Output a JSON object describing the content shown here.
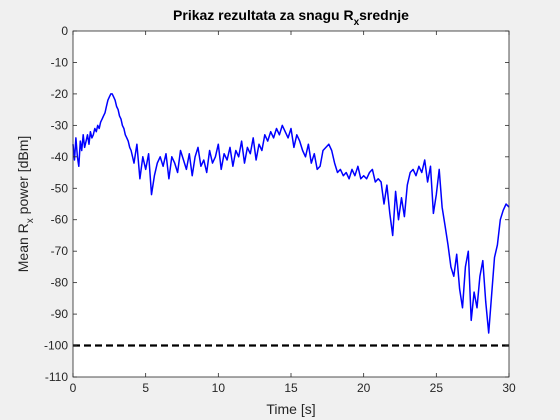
{
  "chart_data": {
    "type": "line",
    "title": {
      "main": "Prikaz rezultata za snagu R",
      "sub": "x",
      "rest": "srednje"
    },
    "xlabel": "Time [s]",
    "ylabel": {
      "main": "Mean R",
      "sub": "x",
      "rest": " power [dBm]"
    },
    "xlim": [
      0,
      30
    ],
    "ylim": [
      -110,
      0
    ],
    "x_ticks": [
      0,
      5,
      10,
      15,
      20,
      25,
      30
    ],
    "y_ticks": [
      0,
      -10,
      -20,
      -30,
      -40,
      -50,
      -60,
      -70,
      -80,
      -90,
      -100,
      -110
    ],
    "grid": false,
    "series": [
      {
        "color": "#0000ff",
        "style": "solid",
        "x": [
          0,
          0.1,
          0.2,
          0.3,
          0.4,
          0.5,
          0.6,
          0.7,
          0.8,
          0.9,
          1.0,
          1.1,
          1.2,
          1.3,
          1.4,
          1.5,
          1.6,
          1.7,
          1.8,
          1.9,
          2.0,
          2.1,
          2.2,
          2.3,
          2.4,
          2.5,
          2.6,
          2.7,
          2.8,
          2.9,
          3.0,
          3.1,
          3.2,
          3.3,
          3.4,
          3.5,
          3.6,
          3.7,
          3.8,
          3.9,
          4.0,
          4.2,
          4.4,
          4.6,
          4.8,
          5.0,
          5.2,
          5.4,
          5.6,
          5.8,
          6.0,
          6.2,
          6.4,
          6.6,
          6.8,
          7.0,
          7.2,
          7.4,
          7.6,
          7.8,
          8.0,
          8.2,
          8.4,
          8.6,
          8.8,
          9.0,
          9.2,
          9.4,
          9.6,
          9.8,
          10.0,
          10.2,
          10.4,
          10.6,
          10.8,
          11.0,
          11.2,
          11.4,
          11.6,
          11.8,
          12.0,
          12.2,
          12.4,
          12.6,
          12.8,
          13.0,
          13.2,
          13.4,
          13.6,
          13.8,
          14.0,
          14.2,
          14.4,
          14.6,
          14.8,
          15.0,
          15.2,
          15.4,
          15.6,
          15.8,
          16.0,
          16.2,
          16.4,
          16.6,
          16.8,
          17.0,
          17.2,
          17.4,
          17.6,
          17.8,
          18.0,
          18.2,
          18.4,
          18.6,
          18.8,
          19.0,
          19.2,
          19.4,
          19.6,
          19.8,
          20.0,
          20.2,
          20.4,
          20.6,
          20.8,
          21.0,
          21.2,
          21.4,
          21.6,
          21.8,
          22.0,
          22.2,
          22.4,
          22.6,
          22.8,
          23.0,
          23.2,
          23.4,
          23.6,
          23.8,
          24.0,
          24.2,
          24.4,
          24.6,
          24.8,
          25.0,
          25.2,
          25.4,
          25.6,
          25.8,
          26.0,
          26.2,
          26.4,
          26.6,
          26.8,
          27.0,
          27.2,
          27.4,
          27.6,
          27.8,
          28.0,
          28.2,
          28.4,
          28.6,
          28.8,
          29.0,
          29.2,
          29.4,
          29.6,
          29.8,
          30.0
        ],
        "y": [
          -36,
          -41,
          -34,
          -40,
          -43,
          -35,
          -38,
          -33,
          -37,
          -35,
          -33,
          -36,
          -32,
          -34,
          -33,
          -31,
          -32,
          -30,
          -31,
          -29,
          -28,
          -27,
          -26,
          -24,
          -22,
          -21,
          -20,
          -20,
          -21,
          -22,
          -24,
          -25,
          -27,
          -28,
          -30,
          -31,
          -33,
          -34,
          -35,
          -37,
          -38,
          -42,
          -36,
          -47,
          -40,
          -44,
          -39,
          -52,
          -46,
          -42,
          -40,
          -43,
          -39,
          -47,
          -40,
          -42,
          -45,
          -38,
          -41,
          -44,
          -39,
          -46,
          -40,
          -37,
          -43,
          -41,
          -45,
          -38,
          -42,
          -40,
          -36,
          -44,
          -39,
          -41,
          -37,
          -43,
          -38,
          -40,
          -35,
          -42,
          -37,
          -39,
          -34,
          -41,
          -36,
          -38,
          -33,
          -35,
          -32,
          -34,
          -31,
          -33,
          -30,
          -32,
          -34,
          -31,
          -37,
          -33,
          -35,
          -38,
          -40,
          -36,
          -42,
          -39,
          -44,
          -43,
          -38,
          -37,
          -36,
          -38,
          -42,
          -45,
          -44,
          -46,
          -45,
          -47,
          -44,
          -46,
          -43,
          -47,
          -46,
          -47,
          -45,
          -44,
          -48,
          -47,
          -48,
          -55,
          -49,
          -58,
          -65,
          -51,
          -60,
          -53,
          -59,
          -49,
          -45,
          -44,
          -46,
          -43,
          -45,
          -41,
          -48,
          -43,
          -58,
          -52,
          -44,
          -56,
          -62,
          -68,
          -75,
          -78,
          -71,
          -82,
          -88,
          -75,
          -70,
          -92,
          -83,
          -88,
          -78,
          -73,
          -86,
          -96,
          -84,
          -72,
          -68,
          -60,
          -57,
          -55,
          -56
        ]
      },
      {
        "color": "#000000",
        "style": "dashed",
        "x": [
          0,
          30
        ],
        "y": [
          -100,
          -100
        ]
      }
    ]
  }
}
